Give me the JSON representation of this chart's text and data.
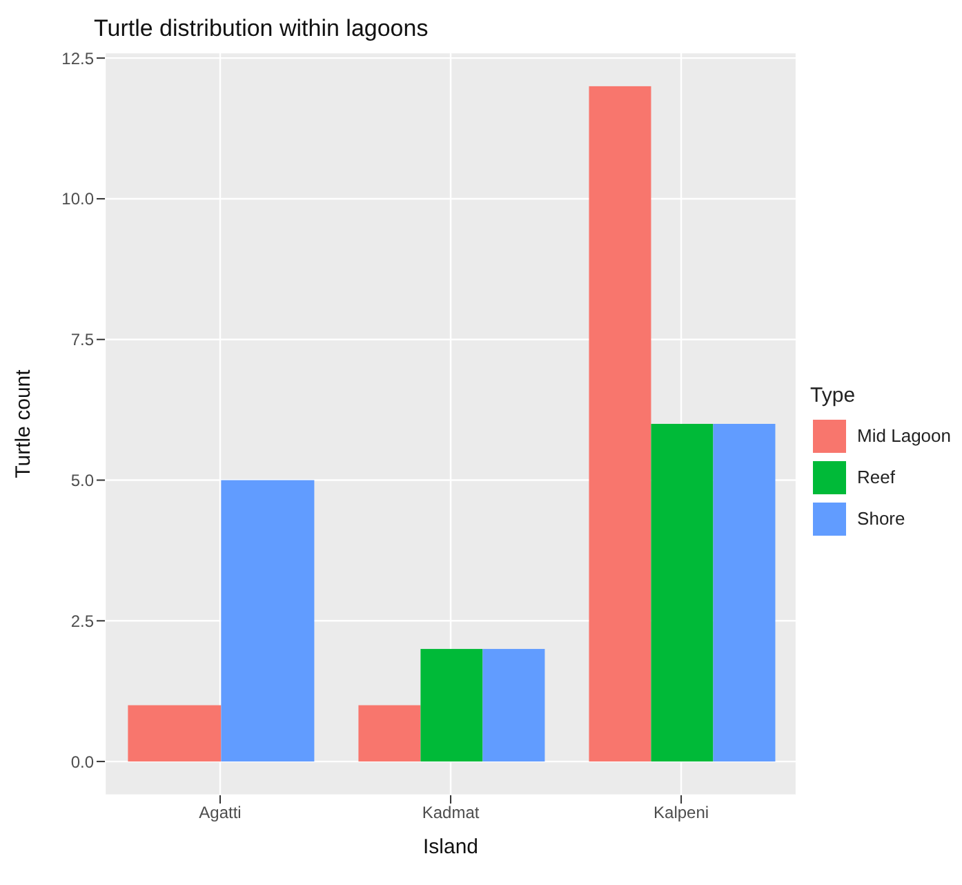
{
  "chart_data": {
    "type": "bar",
    "title": "Turtle distribution within lagoons",
    "xlabel": "Island",
    "ylabel": "Turtle count",
    "legend_title": "Type",
    "categories": [
      "Agatti",
      "Kadmat",
      "Kalpeni"
    ],
    "series": [
      {
        "name": "Mid Lagoon",
        "color": "#f8766d",
        "values": [
          1,
          1,
          12
        ]
      },
      {
        "name": "Reef",
        "color": "#00ba38",
        "values": [
          null,
          2,
          6
        ]
      },
      {
        "name": "Shore",
        "color": "#619cff",
        "values": [
          5,
          2,
          6
        ]
      }
    ],
    "ylim": [
      -0.6,
      12.6
    ],
    "yticks": [
      {
        "value": 0,
        "label": "0.0"
      },
      {
        "value": 2.5,
        "label": "2.5"
      },
      {
        "value": 5,
        "label": "5.0"
      },
      {
        "value": 7.5,
        "label": "7.5"
      },
      {
        "value": 10,
        "label": "10.0"
      },
      {
        "value": 12.5,
        "label": "12.5"
      }
    ],
    "grid": true,
    "legend": "right"
  }
}
